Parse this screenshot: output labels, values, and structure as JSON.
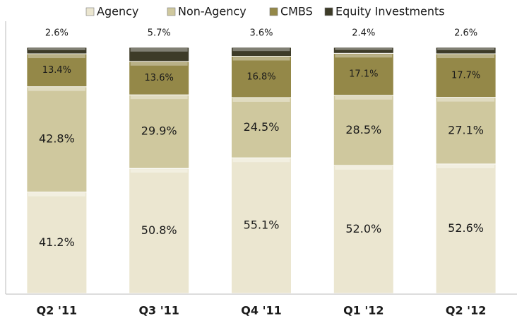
{
  "chart_data": {
    "type": "stacked_bar",
    "categories": [
      "Q2 '11",
      "Q3 '11",
      "Q4 '11",
      "Q1 '12",
      "Q2 '12"
    ],
    "series": [
      {
        "name": "Agency",
        "color": "#ebe6d0",
        "values": [
          41.2,
          50.8,
          55.1,
          52.0,
          52.6
        ],
        "value_labels": [
          "41.2%",
          "50.8%",
          "55.1%",
          "52.0%",
          "52.6%"
        ]
      },
      {
        "name": "Non-Agency",
        "color": "#cfc89e",
        "values": [
          42.8,
          29.9,
          24.5,
          28.5,
          27.1
        ],
        "value_labels": [
          "42.8%",
          "29.9%",
          "24.5%",
          "28.5%",
          "27.1%"
        ]
      },
      {
        "name": "CMBS",
        "color": "#948848",
        "values": [
          13.4,
          13.6,
          16.8,
          17.1,
          17.7
        ],
        "value_labels": [
          "13.4%",
          "13.6%",
          "16.8%",
          "17.1%",
          "17.7%"
        ]
      },
      {
        "name": "Equity Investments",
        "color": "#3d3b28",
        "values": [
          2.6,
          5.7,
          3.6,
          2.4,
          2.6
        ],
        "value_labels": [
          "2.6%",
          "5.7%",
          "3.6%",
          "2.4%",
          "2.6%"
        ]
      }
    ]
  }
}
